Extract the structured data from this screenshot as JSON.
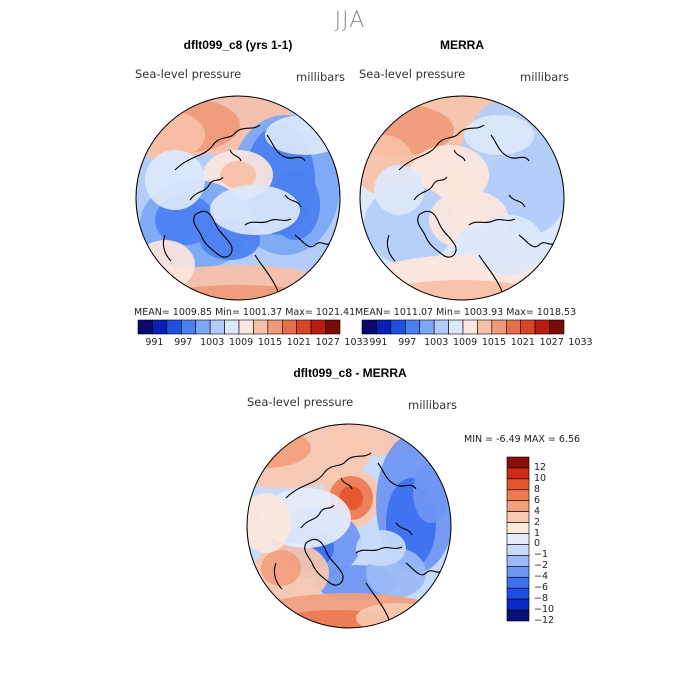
{
  "figure": {
    "season": "JJA"
  },
  "palettes": {
    "absolute": [
      "#08086e",
      "#0a1fb4",
      "#1f4fe0",
      "#4a80f0",
      "#7ba7f5",
      "#b3cdf8",
      "#dce8fb",
      "#fde6dc",
      "#f8c0a6",
      "#f09a7a",
      "#e66e4c",
      "#d8452a",
      "#b81e10",
      "#7a0a05"
    ],
    "difference": [
      "#07107a",
      "#0b28c8",
      "#1b4fe8",
      "#3d6fef",
      "#6f96f3",
      "#9bbaf6",
      "#c8dbfa",
      "#e6eefc",
      "#fde8dc",
      "#f9c8b0",
      "#f2a07e",
      "#ec7a52",
      "#e4542e",
      "#cc2a14",
      "#8c0c06"
    ]
  },
  "chart_data": [
    {
      "type": "heatmap",
      "projection": "polar stereographic (north)",
      "title": "dflt099_c8 (yrs 1-1)",
      "left_label": "Sea-level pressure",
      "right_label": "millibars",
      "stats_text": "MEAN= 1009.85  Min= 1001.37  Max= 1021.41",
      "stats": {
        "mean": 1009.85,
        "min": 1001.37,
        "max": 1021.41
      },
      "colorbar_levels": [
        991,
        997,
        1003,
        1009,
        1015,
        1021,
        1027,
        1033
      ],
      "colorbar_labels": [
        "991",
        "997",
        "1003",
        "1009",
        "1015",
        "1021",
        "1027",
        "1033"
      ]
    },
    {
      "type": "heatmap",
      "projection": "polar stereographic (north)",
      "title": "MERRA",
      "left_label": "Sea-level pressure",
      "right_label": "millibars",
      "stats_text": "MEAN= 1011.07  Min= 1003.93  Max= 1018.53",
      "stats": {
        "mean": 1011.07,
        "min": 1003.93,
        "max": 1018.53
      },
      "colorbar_levels": [
        991,
        997,
        1003,
        1009,
        1015,
        1021,
        1027,
        1033
      ],
      "colorbar_labels": [
        "991",
        "997",
        "1003",
        "1009",
        "1015",
        "1021",
        "1027",
        "1033"
      ]
    },
    {
      "type": "heatmap",
      "projection": "polar stereographic (north)",
      "title": "dflt099_c8 - MERRA",
      "left_label": "Sea-level pressure",
      "right_label": "millibars",
      "stats_text": "MIN =   -6.49 MAX =    6.56",
      "stats": {
        "min": -6.49,
        "max": 6.56
      },
      "colorbar_levels": [
        12,
        10,
        8,
        6,
        4,
        2,
        1,
        0,
        -1,
        -2,
        -4,
        -6,
        -8,
        -10,
        -12
      ],
      "colorbar_labels": [
        "12",
        "10",
        "8",
        "6",
        "4",
        "2",
        "1",
        "0",
        "−1",
        "−2",
        "−4",
        "−6",
        "−8",
        "−10",
        "−12"
      ]
    }
  ]
}
